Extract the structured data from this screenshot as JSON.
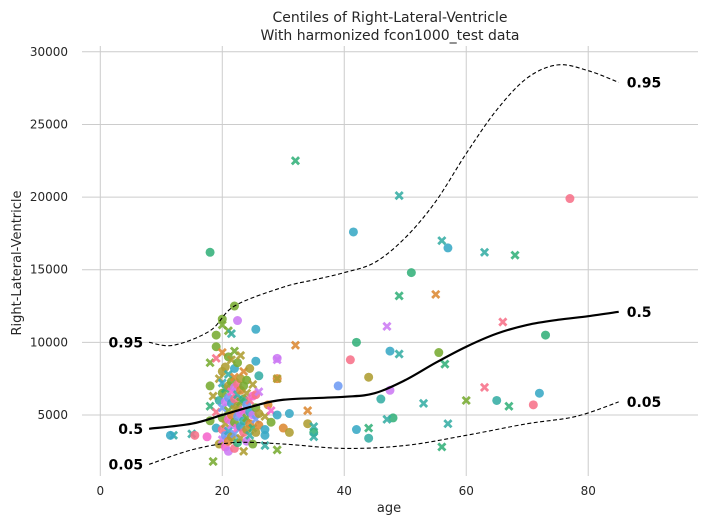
{
  "chart_data": {
    "type": "scatter",
    "title": "Centiles of Right-Lateral-Ventricle",
    "subtitle": "With harmonized fcon1000_test data",
    "xlabel": "age",
    "ylabel": "Right-Lateral-Ventricle",
    "xlim": [
      -3,
      98
    ],
    "ylim": [
      800,
      30400
    ],
    "xticks": [
      0,
      20,
      40,
      60,
      80
    ],
    "yticks": [
      5000,
      10000,
      15000,
      20000,
      25000,
      30000
    ],
    "grid": true,
    "point_colors": [
      "#f77189",
      "#dc8932",
      "#ae9d31",
      "#77ab31",
      "#33b07a",
      "#36ada4",
      "#38a9c5",
      "#6e9bf4",
      "#cc7af4",
      "#f565cc"
    ],
    "centiles": [
      {
        "name": "0.05",
        "style": "dashed",
        "label_left": "0.05",
        "label_right": "0.05",
        "x": [
          8,
          15,
          22,
          30,
          40,
          50,
          60,
          70,
          78,
          85
        ],
        "y": [
          1600,
          2600,
          3100,
          3000,
          2700,
          2900,
          3600,
          4400,
          4900,
          5900
        ]
      },
      {
        "name": "0.5",
        "style": "solid",
        "label_left": "0.5",
        "label_right": "0.5",
        "x": [
          8,
          15,
          20,
          25,
          30,
          40,
          45,
          50,
          55,
          60,
          65,
          70,
          75,
          80,
          85
        ],
        "y": [
          4050,
          4400,
          5000,
          5600,
          6050,
          6250,
          6500,
          7400,
          8600,
          9700,
          10600,
          11200,
          11550,
          11800,
          12100
        ]
      },
      {
        "name": "0.95",
        "style": "dashed",
        "label_left": "0.95",
        "label_right": "0.95",
        "x": [
          8,
          12,
          18,
          22,
          30,
          35,
          40,
          45,
          50,
          55,
          60,
          65,
          70,
          75,
          80,
          85
        ],
        "y": [
          10000,
          9800,
          10800,
          12500,
          13800,
          14300,
          14800,
          15500,
          17200,
          19700,
          23000,
          26000,
          28200,
          29100,
          28700,
          27900
        ]
      }
    ],
    "points": [
      {
        "x": 77,
        "y": 19900,
        "c": 0,
        "m": "o"
      },
      {
        "x": 41.5,
        "y": 17600,
        "c": 6,
        "m": "o"
      },
      {
        "x": 18,
        "y": 16200,
        "c": 4,
        "m": "o"
      },
      {
        "x": 32,
        "y": 22500,
        "c": 4,
        "m": "x"
      },
      {
        "x": 49,
        "y": 20100,
        "c": 5,
        "m": "x"
      },
      {
        "x": 56,
        "y": 17000,
        "c": 5,
        "m": "x"
      },
      {
        "x": 57,
        "y": 16500,
        "c": 6,
        "m": "o"
      },
      {
        "x": 63,
        "y": 16200,
        "c": 5,
        "m": "x"
      },
      {
        "x": 68,
        "y": 16000,
        "c": 4,
        "m": "x"
      },
      {
        "x": 51,
        "y": 14800,
        "c": 4,
        "m": "o"
      },
      {
        "x": 55,
        "y": 13300,
        "c": 1,
        "m": "x"
      },
      {
        "x": 49,
        "y": 13200,
        "c": 4,
        "m": "x"
      },
      {
        "x": 20,
        "y": 11600,
        "c": 3,
        "m": "o"
      },
      {
        "x": 22,
        "y": 12500,
        "c": 3,
        "m": "o"
      },
      {
        "x": 22.5,
        "y": 11500,
        "c": 8,
        "m": "o"
      },
      {
        "x": 25.5,
        "y": 10900,
        "c": 6,
        "m": "o"
      },
      {
        "x": 21,
        "y": 10800,
        "c": 3,
        "m": "x"
      },
      {
        "x": 19,
        "y": 10500,
        "c": 3,
        "m": "o"
      },
      {
        "x": 42,
        "y": 10000,
        "c": 4,
        "m": "o"
      },
      {
        "x": 32,
        "y": 9800,
        "c": 1,
        "m": "x"
      },
      {
        "x": 47,
        "y": 11100,
        "c": 8,
        "m": "x"
      },
      {
        "x": 66,
        "y": 11400,
        "c": 0,
        "m": "x"
      },
      {
        "x": 73,
        "y": 10500,
        "c": 4,
        "m": "o"
      },
      {
        "x": 47.5,
        "y": 9400,
        "c": 6,
        "m": "o"
      },
      {
        "x": 49,
        "y": 9200,
        "c": 5,
        "m": "x"
      },
      {
        "x": 55.5,
        "y": 9300,
        "c": 3,
        "m": "o"
      },
      {
        "x": 41,
        "y": 8800,
        "c": 0,
        "m": "o"
      },
      {
        "x": 29,
        "y": 8900,
        "c": 8,
        "m": "o"
      },
      {
        "x": 29,
        "y": 8800,
        "c": 8,
        "m": "x"
      },
      {
        "x": 56.5,
        "y": 8500,
        "c": 4,
        "m": "x"
      },
      {
        "x": 44,
        "y": 7600,
        "c": 2,
        "m": "o"
      },
      {
        "x": 39,
        "y": 7000,
        "c": 7,
        "m": "o"
      },
      {
        "x": 47.5,
        "y": 6700,
        "c": 8,
        "m": "o"
      },
      {
        "x": 63,
        "y": 6900,
        "c": 0,
        "m": "x"
      },
      {
        "x": 60,
        "y": 6000,
        "c": 3,
        "m": "x"
      },
      {
        "x": 65,
        "y": 6000,
        "c": 5,
        "m": "o"
      },
      {
        "x": 72,
        "y": 6500,
        "c": 6,
        "m": "o"
      },
      {
        "x": 71,
        "y": 5700,
        "c": 0,
        "m": "o"
      },
      {
        "x": 67,
        "y": 5600,
        "c": 4,
        "m": "x"
      },
      {
        "x": 53,
        "y": 5800,
        "c": 5,
        "m": "x"
      },
      {
        "x": 46,
        "y": 6100,
        "c": 5,
        "m": "o"
      },
      {
        "x": 48,
        "y": 4800,
        "c": 4,
        "m": "o"
      },
      {
        "x": 47,
        "y": 4700,
        "c": 5,
        "m": "x"
      },
      {
        "x": 57,
        "y": 4400,
        "c": 5,
        "m": "x"
      },
      {
        "x": 42,
        "y": 4000,
        "c": 6,
        "m": "o"
      },
      {
        "x": 44,
        "y": 4100,
        "c": 4,
        "m": "x"
      },
      {
        "x": 44,
        "y": 3400,
        "c": 5,
        "m": "o"
      },
      {
        "x": 56,
        "y": 2800,
        "c": 4,
        "m": "x"
      },
      {
        "x": 34,
        "y": 5300,
        "c": 1,
        "m": "x"
      },
      {
        "x": 31,
        "y": 5100,
        "c": 6,
        "m": "o"
      },
      {
        "x": 34,
        "y": 4400,
        "c": 2,
        "m": "o"
      },
      {
        "x": 35,
        "y": 4200,
        "c": 5,
        "m": "x"
      },
      {
        "x": 35,
        "y": 3800,
        "c": 4,
        "m": "o"
      },
      {
        "x": 35,
        "y": 3500,
        "c": 5,
        "m": "x"
      },
      {
        "x": 30,
        "y": 4100,
        "c": 1,
        "m": "o"
      },
      {
        "x": 31,
        "y": 3800,
        "c": 2,
        "m": "o"
      },
      {
        "x": 27,
        "y": 2900,
        "c": 5,
        "m": "x"
      },
      {
        "x": 29,
        "y": 2600,
        "c": 3,
        "m": "x"
      },
      {
        "x": 12,
        "y": 3600,
        "c": 5,
        "m": "x"
      },
      {
        "x": 11.5,
        "y": 3600,
        "c": 6,
        "m": "o"
      },
      {
        "x": 15,
        "y": 3700,
        "c": 5,
        "m": "x"
      },
      {
        "x": 15.5,
        "y": 3600,
        "c": 0,
        "m": "o"
      },
      {
        "x": 18.5,
        "y": 1800,
        "c": 3,
        "m": "x"
      },
      {
        "x": 17.5,
        "y": 3500,
        "c": 9,
        "m": "o"
      },
      {
        "x": 18,
        "y": 4600,
        "c": 3,
        "m": "o"
      },
      {
        "x": 18,
        "y": 5600,
        "c": 4,
        "m": "x"
      },
      {
        "x": 18,
        "y": 7000,
        "c": 3,
        "m": "o"
      },
      {
        "x": 18,
        "y": 8600,
        "c": 3,
        "m": "x"
      },
      {
        "x": 18.5,
        "y": 6300,
        "c": 2,
        "m": "x"
      },
      {
        "x": 19,
        "y": 4100,
        "c": 6,
        "m": "o"
      },
      {
        "x": 19,
        "y": 5200,
        "c": 0,
        "m": "x"
      },
      {
        "x": 19,
        "y": 8900,
        "c": 0,
        "m": "x"
      },
      {
        "x": 19,
        "y": 9700,
        "c": 3,
        "m": "o"
      },
      {
        "x": 19.5,
        "y": 3000,
        "c": 2,
        "m": "o"
      },
      {
        "x": 19.5,
        "y": 6000,
        "c": 5,
        "m": "o"
      },
      {
        "x": 19.5,
        "y": 7500,
        "c": 2,
        "m": "x"
      },
      {
        "x": 20,
        "y": 3300,
        "c": 8,
        "m": "x"
      },
      {
        "x": 20,
        "y": 4000,
        "c": 0,
        "m": "o"
      },
      {
        "x": 20,
        "y": 4800,
        "c": 3,
        "m": "o"
      },
      {
        "x": 20,
        "y": 5500,
        "c": 7,
        "m": "x"
      },
      {
        "x": 20,
        "y": 6500,
        "c": 3,
        "m": "o"
      },
      {
        "x": 20,
        "y": 7200,
        "c": 6,
        "m": "x"
      },
      {
        "x": 20,
        "y": 8000,
        "c": 2,
        "m": "o"
      },
      {
        "x": 20,
        "y": 9300,
        "c": 1,
        "m": "x"
      },
      {
        "x": 20,
        "y": 11200,
        "c": 3,
        "m": "x"
      },
      {
        "x": 20.5,
        "y": 2800,
        "c": 9,
        "m": "o"
      },
      {
        "x": 20.5,
        "y": 3600,
        "c": 7,
        "m": "o"
      },
      {
        "x": 20.5,
        "y": 4400,
        "c": 2,
        "m": "x"
      },
      {
        "x": 20.5,
        "y": 5900,
        "c": 8,
        "m": "o"
      },
      {
        "x": 20.5,
        "y": 6800,
        "c": 4,
        "m": "x"
      },
      {
        "x": 20.5,
        "y": 8300,
        "c": 2,
        "m": "o"
      },
      {
        "x": 21,
        "y": 2500,
        "c": 8,
        "m": "o"
      },
      {
        "x": 21,
        "y": 3200,
        "c": 1,
        "m": "o"
      },
      {
        "x": 21,
        "y": 3900,
        "c": 6,
        "m": "x"
      },
      {
        "x": 21,
        "y": 4700,
        "c": 9,
        "m": "o"
      },
      {
        "x": 21,
        "y": 5300,
        "c": 3,
        "m": "x"
      },
      {
        "x": 21,
        "y": 6200,
        "c": 7,
        "m": "o"
      },
      {
        "x": 21,
        "y": 7000,
        "c": 2,
        "m": "o"
      },
      {
        "x": 21,
        "y": 7800,
        "c": 5,
        "m": "x"
      },
      {
        "x": 21,
        "y": 9000,
        "c": 3,
        "m": "o"
      },
      {
        "x": 21.5,
        "y": 3500,
        "c": 2,
        "m": "o"
      },
      {
        "x": 21.5,
        "y": 4300,
        "c": 8,
        "m": "x"
      },
      {
        "x": 21.5,
        "y": 5000,
        "c": 1,
        "m": "o"
      },
      {
        "x": 21.5,
        "y": 5800,
        "c": 6,
        "m": "o"
      },
      {
        "x": 21.5,
        "y": 6600,
        "c": 9,
        "m": "x"
      },
      {
        "x": 21.5,
        "y": 7300,
        "c": 3,
        "m": "o"
      },
      {
        "x": 21.5,
        "y": 8800,
        "c": 2,
        "m": "x"
      },
      {
        "x": 21.5,
        "y": 10600,
        "c": 5,
        "m": "x"
      },
      {
        "x": 22,
        "y": 2700,
        "c": 0,
        "m": "o"
      },
      {
        "x": 22,
        "y": 3700,
        "c": 7,
        "m": "x"
      },
      {
        "x": 22,
        "y": 4500,
        "c": 3,
        "m": "o"
      },
      {
        "x": 22,
        "y": 5400,
        "c": 2,
        "m": "x"
      },
      {
        "x": 22,
        "y": 6100,
        "c": 0,
        "m": "o"
      },
      {
        "x": 22,
        "y": 6900,
        "c": 8,
        "m": "o"
      },
      {
        "x": 22,
        "y": 7600,
        "c": 1,
        "m": "x"
      },
      {
        "x": 22,
        "y": 8200,
        "c": 6,
        "m": "o"
      },
      {
        "x": 22,
        "y": 9400,
        "c": 3,
        "m": "x"
      },
      {
        "x": 22.5,
        "y": 3100,
        "c": 4,
        "m": "o"
      },
      {
        "x": 22.5,
        "y": 4100,
        "c": 9,
        "m": "x"
      },
      {
        "x": 22.5,
        "y": 4900,
        "c": 7,
        "m": "o"
      },
      {
        "x": 22.5,
        "y": 5600,
        "c": 2,
        "m": "o"
      },
      {
        "x": 22.5,
        "y": 6400,
        "c": 5,
        "m": "x"
      },
      {
        "x": 22.5,
        "y": 7100,
        "c": 0,
        "m": "o"
      },
      {
        "x": 22.5,
        "y": 8600,
        "c": 3,
        "m": "o"
      },
      {
        "x": 23,
        "y": 3400,
        "c": 2,
        "m": "x"
      },
      {
        "x": 23,
        "y": 4200,
        "c": 6,
        "m": "o"
      },
      {
        "x": 23,
        "y": 5100,
        "c": 8,
        "m": "o"
      },
      {
        "x": 23,
        "y": 5900,
        "c": 3,
        "m": "x"
      },
      {
        "x": 23,
        "y": 6700,
        "c": 1,
        "m": "o"
      },
      {
        "x": 23,
        "y": 7500,
        "c": 2,
        "m": "o"
      },
      {
        "x": 23,
        "y": 9100,
        "c": 2,
        "m": "x"
      },
      {
        "x": 23.5,
        "y": 2500,
        "c": 2,
        "m": "x"
      },
      {
        "x": 23.5,
        "y": 3800,
        "c": 0,
        "m": "o"
      },
      {
        "x": 23.5,
        "y": 4600,
        "c": 5,
        "m": "o"
      },
      {
        "x": 23.5,
        "y": 5300,
        "c": 9,
        "m": "x"
      },
      {
        "x": 23.5,
        "y": 6100,
        "c": 4,
        "m": "o"
      },
      {
        "x": 23.5,
        "y": 7000,
        "c": 3,
        "m": "o"
      },
      {
        "x": 23.5,
        "y": 8000,
        "c": 1,
        "m": "x"
      },
      {
        "x": 24,
        "y": 3200,
        "c": 8,
        "m": "o"
      },
      {
        "x": 24,
        "y": 4000,
        "c": 2,
        "m": "o"
      },
      {
        "x": 24,
        "y": 4800,
        "c": 3,
        "m": "x"
      },
      {
        "x": 24,
        "y": 5700,
        "c": 7,
        "m": "o"
      },
      {
        "x": 24,
        "y": 6500,
        "c": 2,
        "m": "x"
      },
      {
        "x": 24,
        "y": 7400,
        "c": 3,
        "m": "o"
      },
      {
        "x": 24.5,
        "y": 3600,
        "c": 5,
        "m": "x"
      },
      {
        "x": 24.5,
        "y": 4400,
        "c": 1,
        "m": "o"
      },
      {
        "x": 24.5,
        "y": 5200,
        "c": 6,
        "m": "o"
      },
      {
        "x": 24.5,
        "y": 6000,
        "c": 0,
        "m": "x"
      },
      {
        "x": 24.5,
        "y": 8200,
        "c": 2,
        "m": "o"
      },
      {
        "x": 25,
        "y": 3000,
        "c": 3,
        "m": "o"
      },
      {
        "x": 25,
        "y": 4100,
        "c": 4,
        "m": "x"
      },
      {
        "x": 25,
        "y": 5000,
        "c": 8,
        "m": "o"
      },
      {
        "x": 25,
        "y": 6300,
        "c": 9,
        "m": "o"
      },
      {
        "x": 25,
        "y": 7100,
        "c": 2,
        "m": "x"
      },
      {
        "x": 25.5,
        "y": 3800,
        "c": 2,
        "m": "o"
      },
      {
        "x": 25.5,
        "y": 4700,
        "c": 7,
        "m": "x"
      },
      {
        "x": 25.5,
        "y": 5500,
        "c": 3,
        "m": "o"
      },
      {
        "x": 25.5,
        "y": 6400,
        "c": 0,
        "m": "o"
      },
      {
        "x": 25.5,
        "y": 8700,
        "c": 6,
        "m": "o"
      },
      {
        "x": 26,
        "y": 4300,
        "c": 1,
        "m": "o"
      },
      {
        "x": 26,
        "y": 5100,
        "c": 2,
        "m": "o"
      },
      {
        "x": 26,
        "y": 6600,
        "c": 8,
        "m": "x"
      },
      {
        "x": 26,
        "y": 7700,
        "c": 5,
        "m": "o"
      },
      {
        "x": 27,
        "y": 4000,
        "c": 6,
        "m": "o"
      },
      {
        "x": 27,
        "y": 3600,
        "c": 6,
        "m": "o"
      },
      {
        "x": 27,
        "y": 4900,
        "c": 2,
        "m": "x"
      },
      {
        "x": 27.5,
        "y": 5700,
        "c": 1,
        "m": "o"
      },
      {
        "x": 28,
        "y": 4500,
        "c": 3,
        "m": "o"
      },
      {
        "x": 28,
        "y": 5300,
        "c": 9,
        "m": "x"
      },
      {
        "x": 29,
        "y": 7500,
        "c": 1,
        "m": "o"
      },
      {
        "x": 29,
        "y": 7500,
        "c": 2,
        "m": "x"
      },
      {
        "x": 29,
        "y": 5000,
        "c": 6,
        "m": "o"
      }
    ]
  }
}
